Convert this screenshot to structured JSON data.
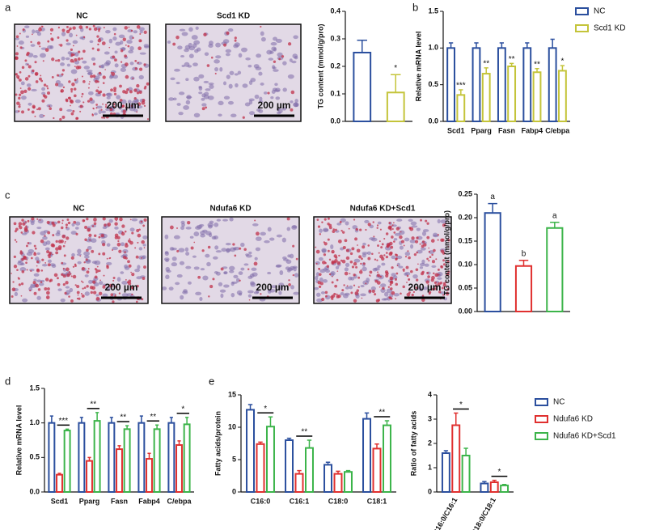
{
  "panels": [
    "a",
    "b",
    "c",
    "d",
    "e"
  ],
  "images": [
    {
      "title": "NC",
      "scale_bar": "200 µm"
    },
    {
      "title": "Scd1 KD",
      "scale_bar": "200 µm"
    },
    {
      "title": "NC",
      "scale_bar": "200 µm"
    },
    {
      "title": "Ndufa6 KD",
      "scale_bar": "200 µm"
    },
    {
      "title": "Ndufa6 KD+Scd1",
      "scale_bar": "200 µm"
    }
  ],
  "chart_data": [
    {
      "type": "bar",
      "ylabel": "TG content (mmol/g/pro)",
      "categories": [
        null,
        null
      ],
      "values": [
        0.25,
        0.105
      ],
      "errors": [
        0.045,
        0.065
      ],
      "colors": [
        "#2b4f9e",
        "#c4c43a"
      ],
      "annotations": [
        null,
        "*"
      ],
      "ylim": [
        0,
        0.4
      ],
      "yticks": [
        {
          "value": 0,
          "label": "0.0"
        },
        {
          "value": 0.1,
          "label": "0.1"
        },
        {
          "value": 0.2,
          "label": "0.2"
        },
        {
          "value": 0.3,
          "label": "0.3"
        },
        {
          "value": 0.4,
          "label": "0.4"
        }
      ]
    },
    {
      "type": "grouped_bar",
      "ylabel": "Relative mRNA level",
      "categories": [
        "Scd1",
        "Pparg",
        "Fasn",
        "Fabp4",
        "C/ebpa"
      ],
      "series": [
        {
          "name": "NC",
          "color": "#2b4f9e",
          "values": [
            1,
            1,
            1,
            1,
            1
          ],
          "errors": [
            0.07,
            0.07,
            0.07,
            0.07,
            0.12
          ]
        },
        {
          "name": "Scd1 KD",
          "color": "#c4c43a",
          "values": [
            0.36,
            0.65,
            0.75,
            0.67,
            0.69
          ],
          "errors": [
            0.07,
            0.08,
            0.04,
            0.05,
            0.07
          ]
        }
      ],
      "annotations": [
        "***",
        "**",
        "**",
        "**",
        "*"
      ],
      "ylim": [
        0,
        1.5
      ],
      "yticks": [
        {
          "value": 0,
          "label": "0.0"
        },
        {
          "value": 0.5,
          "label": "0.5"
        },
        {
          "value": 1,
          "label": "1.0"
        },
        {
          "value": 1.5,
          "label": "1.5"
        }
      ],
      "legend": true
    },
    {
      "type": "bar",
      "ylabel": "TG content (mmol/g/pro)",
      "categories": [
        null,
        null,
        null
      ],
      "values": [
        0.21,
        0.097,
        0.178
      ],
      "errors": [
        0.02,
        0.012,
        0.012
      ],
      "colors": [
        "#2b4f9e",
        "#e0302f",
        "#3cb44a"
      ],
      "annotations": [
        "a",
        "b",
        "a"
      ],
      "ylim": [
        0,
        0.25
      ],
      "yticks": [
        {
          "value": 0,
          "label": "0.00"
        },
        {
          "value": 0.05,
          "label": "0.05"
        },
        {
          "value": 0.1,
          "label": "0.10"
        },
        {
          "value": 0.15,
          "label": "0.15"
        },
        {
          "value": 0.2,
          "label": "0.20"
        },
        {
          "value": 0.25,
          "label": "0.25"
        }
      ]
    },
    {
      "type": "grouped_bar",
      "ylabel": "Relative mRNA level",
      "categories": [
        "Scd1",
        "Pparg",
        "Fasn",
        "Fabp4",
        "C/ebpa"
      ],
      "series": [
        {
          "name": "NC",
          "color": "#2b4f9e",
          "values": [
            1,
            1,
            1,
            1,
            1
          ],
          "errors": [
            0.1,
            0.08,
            0.08,
            0.1,
            0.08
          ]
        },
        {
          "name": "Ndufa6 KD",
          "color": "#e0302f",
          "values": [
            0.25,
            0.45,
            0.62,
            0.48,
            0.68
          ],
          "errors": [
            0.02,
            0.05,
            0.05,
            0.08,
            0.06
          ]
        },
        {
          "name": "Ndufa6 KD+Scd1",
          "color": "#3cb44a",
          "values": [
            0.89,
            1.03,
            0.91,
            0.91,
            0.98
          ],
          "errors": [
            0.02,
            0.12,
            0.05,
            0.06,
            0.1
          ]
        }
      ],
      "annotations": [
        "***",
        "**",
        "**",
        "**",
        "*"
      ],
      "ylim": [
        0,
        1.5
      ],
      "yticks": [
        {
          "value": 0,
          "label": "0.0"
        },
        {
          "value": 0.5,
          "label": "0.5"
        },
        {
          "value": 1,
          "label": "1.0"
        },
        {
          "value": 1.5,
          "label": "1.5"
        }
      ]
    },
    {
      "type": "grouped_bar",
      "ylabel": "Fatty acids/protein",
      "categories": [
        "C16:0",
        "C16:1",
        "C18:0",
        "C18:1"
      ],
      "series": [
        {
          "name": "NC",
          "color": "#2b4f9e",
          "values": [
            12.7,
            8.0,
            4.2,
            11.3
          ],
          "errors": [
            0.8,
            0.3,
            0.4,
            0.9
          ]
        },
        {
          "name": "Ndufa6 KD",
          "color": "#e0302f",
          "values": [
            7.4,
            2.8,
            2.8,
            6.7
          ],
          "errors": [
            0.3,
            0.5,
            0.4,
            0.7
          ]
        },
        {
          "name": "Ndufa6 KD+Scd1",
          "color": "#3cb44a",
          "values": [
            10.1,
            6.8,
            3.1,
            10.3
          ],
          "errors": [
            1.5,
            1.2,
            0.2,
            0.7
          ]
        }
      ],
      "annotations": [
        "*",
        "**",
        null,
        "**"
      ],
      "ylim": [
        0,
        15
      ],
      "yticks": [
        0,
        5,
        10,
        15
      ]
    },
    {
      "type": "grouped_bar",
      "ylabel": "Ratio of fatty acids",
      "categories": [
        "C16:0/C16:1",
        "C18:0/C18:1"
      ],
      "series": [
        {
          "name": "NC",
          "color": "#2b4f9e",
          "values": [
            1.6,
            0.35
          ],
          "errors": [
            0.1,
            0.08
          ]
        },
        {
          "name": "Ndufa6 KD",
          "color": "#e0302f",
          "values": [
            2.75,
            0.4
          ],
          "errors": [
            0.5,
            0.08
          ]
        },
        {
          "name": "Ndufa6 KD+Scd1",
          "color": "#3cb44a",
          "values": [
            1.5,
            0.27
          ],
          "errors": [
            0.3,
            0.04
          ]
        }
      ],
      "annotations": [
        "*",
        "*"
      ],
      "ylim": [
        0,
        4
      ],
      "yticks": [
        0,
        1,
        2,
        3,
        4
      ],
      "legend": true
    }
  ]
}
